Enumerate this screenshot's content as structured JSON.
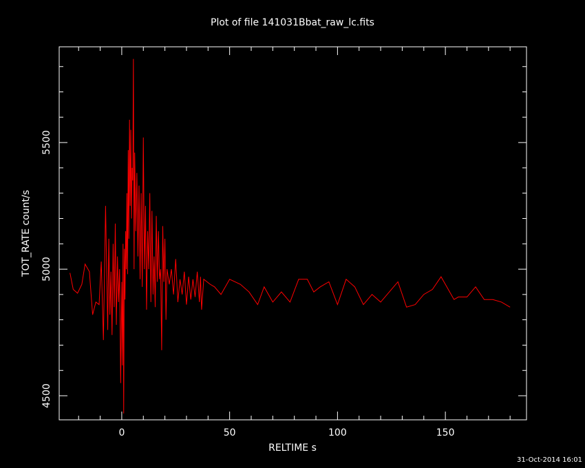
{
  "chart_data": {
    "type": "line",
    "title": "Plot of file 141031Bbat_raw_lc.fits",
    "x_label": "RELTIME  s",
    "y_label": "TOT_RATE  count/s",
    "timestamp": "31-Oct-2014 16:01",
    "color": "#ff0000",
    "xlim": [
      -29,
      187.6
    ],
    "ylim": [
      4405,
      5878
    ],
    "xticks": [
      0,
      50,
      100,
      150
    ],
    "yticks": [
      4500,
      5000,
      5500
    ],
    "xminorticks": [
      -20,
      -10,
      10,
      20,
      30,
      40,
      60,
      70,
      80,
      90,
      110,
      120,
      130,
      140,
      160,
      170,
      180
    ],
    "yminorticks": [
      4600,
      4700,
      4800,
      4900,
      5100,
      5200,
      5300,
      5400,
      5600,
      5700,
      5800
    ],
    "x": [
      -24,
      -22.5,
      -20.5,
      -18.5,
      -17,
      -15,
      -13.5,
      -12,
      -10.5,
      -9.5,
      -8.5,
      -7.5,
      -6.5,
      -6,
      -5.5,
      -5,
      -4.5,
      -4,
      -3.5,
      -3,
      -2.5,
      -2,
      -1.5,
      -1,
      -0.5,
      0,
      0.3,
      0.6,
      0.9,
      1.2,
      1.5,
      1.8,
      2.1,
      2.4,
      2.7,
      3,
      3.3,
      3.6,
      3.9,
      4.2,
      4.5,
      4.8,
      5.1,
      5.4,
      5.7,
      6,
      6.5,
      7,
      7.5,
      8,
      8.5,
      9,
      9.5,
      10,
      10.5,
      11,
      11.5,
      12,
      12.5,
      13,
      13.5,
      14,
      14.5,
      15,
      15.5,
      16,
      16.5,
      17,
      17.5,
      18,
      18.5,
      19,
      19.5,
      20,
      20.5,
      21,
      22,
      23,
      24,
      25,
      26,
      27,
      28,
      29,
      30,
      31,
      32,
      33,
      34,
      35,
      36,
      36.5,
      37,
      38,
      41,
      43,
      46,
      50,
      55,
      59,
      63,
      66,
      70,
      74,
      78,
      82,
      86,
      89,
      92,
      96,
      100,
      104,
      108,
      112,
      116,
      120,
      128,
      132,
      136,
      140,
      144,
      148,
      154,
      156,
      160,
      164,
      168,
      172,
      176,
      180
    ],
    "values": [
      4985,
      4920,
      4905,
      4940,
      5020,
      4990,
      4820,
      4870,
      4860,
      5030,
      4720,
      5250,
      4760,
      5120,
      4820,
      4990,
      4740,
      5100,
      4850,
      5180,
      4780,
      5050,
      4870,
      5000,
      4550,
      4950,
      4620,
      5100,
      4430,
      5080,
      4880,
      5150,
      5000,
      5300,
      4980,
      5470,
      5120,
      5590,
      5250,
      5550,
      5200,
      5400,
      5350,
      5830,
      5000,
      5460,
      5150,
      5380,
      5050,
      5330,
      4960,
      5300,
      4930,
      5520,
      5000,
      5250,
      4840,
      5150,
      5000,
      5300,
      4870,
      5230,
      4900,
      5050,
      4850,
      5210,
      4950,
      5150,
      4960,
      5000,
      4680,
      5170,
      4950,
      5120,
      4800,
      5000,
      4940,
      5000,
      4900,
      5040,
      4870,
      4960,
      4900,
      4990,
      4860,
      4970,
      4880,
      4960,
      4890,
      4990,
      4870,
      4970,
      4840,
      4960,
      4940,
      4930,
      4900,
      4960,
      4940,
      4910,
      4860,
      4930,
      4870,
      4910,
      4870,
      4960,
      4960,
      4910,
      4930,
      4950,
      4860,
      4960,
      4930,
      4860,
      4900,
      4870,
      4950,
      4850,
      4860,
      4900,
      4920,
      4970,
      4880,
      4890,
      4890,
      4930,
      4880,
      4880,
      4870,
      4850
    ]
  }
}
